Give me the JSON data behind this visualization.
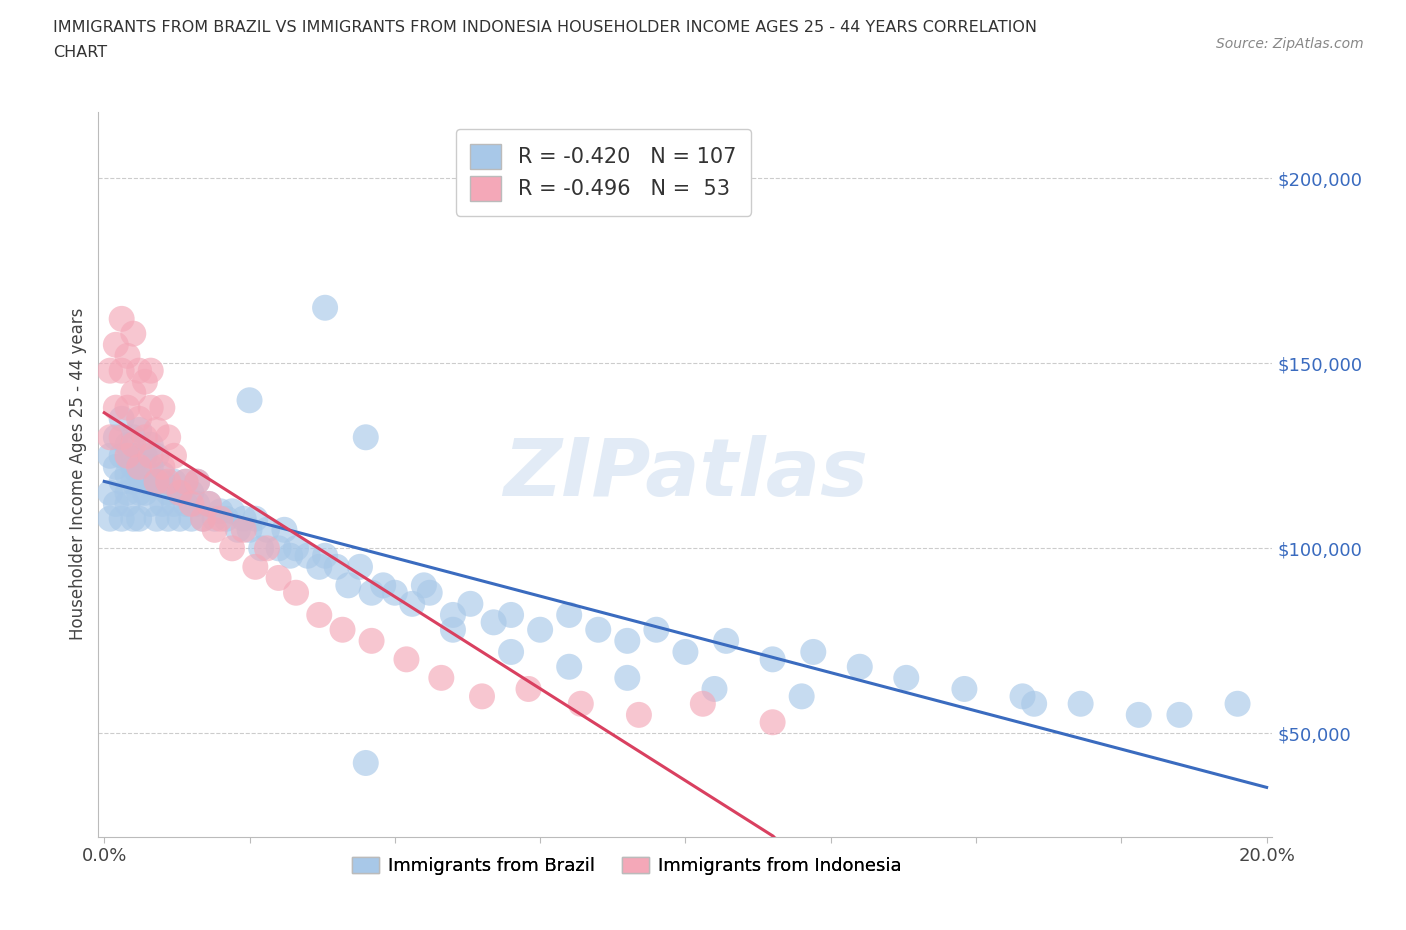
{
  "title_line1": "IMMIGRANTS FROM BRAZIL VS IMMIGRANTS FROM INDONESIA HOUSEHOLDER INCOME AGES 25 - 44 YEARS CORRELATION",
  "title_line2": "CHART",
  "source": "Source: ZipAtlas.com",
  "ylabel": "Householder Income Ages 25 - 44 years",
  "xlim": [
    -0.001,
    0.201
  ],
  "ylim": [
    22000,
    218000
  ],
  "yticks": [
    50000,
    100000,
    150000,
    200000
  ],
  "ytick_labels": [
    "$50,000",
    "$100,000",
    "$150,000",
    "$200,000"
  ],
  "xticks": [
    0.0,
    0.025,
    0.05,
    0.075,
    0.1,
    0.125,
    0.15,
    0.175,
    0.2
  ],
  "xtick_labels": [
    "0.0%",
    "",
    "",
    "",
    "",
    "",
    "",
    "",
    "20.0%"
  ],
  "brazil_color": "#a8c8e8",
  "indonesia_color": "#f4a8b8",
  "brazil_line_color": "#3a6bbf",
  "indonesia_line_color": "#d94060",
  "brazil_R": -0.42,
  "brazil_N": 107,
  "indonesia_R": -0.496,
  "indonesia_N": 53,
  "watermark": "ZIPatlas",
  "brazil_label": "Immigrants from Brazil",
  "indonesia_label": "Immigrants from Indonesia",
  "brazil_x": [
    0.001,
    0.001,
    0.001,
    0.002,
    0.002,
    0.002,
    0.003,
    0.003,
    0.003,
    0.003,
    0.004,
    0.004,
    0.004,
    0.004,
    0.005,
    0.005,
    0.005,
    0.005,
    0.005,
    0.006,
    0.006,
    0.006,
    0.006,
    0.007,
    0.007,
    0.007,
    0.008,
    0.008,
    0.008,
    0.009,
    0.009,
    0.009,
    0.01,
    0.01,
    0.01,
    0.011,
    0.011,
    0.012,
    0.012,
    0.013,
    0.013,
    0.014,
    0.014,
    0.015,
    0.015,
    0.016,
    0.016,
    0.017,
    0.018,
    0.019,
    0.02,
    0.021,
    0.022,
    0.023,
    0.024,
    0.025,
    0.026,
    0.027,
    0.028,
    0.03,
    0.031,
    0.032,
    0.033,
    0.035,
    0.037,
    0.038,
    0.04,
    0.042,
    0.044,
    0.046,
    0.048,
    0.05,
    0.053,
    0.056,
    0.06,
    0.063,
    0.067,
    0.07,
    0.075,
    0.08,
    0.085,
    0.09,
    0.095,
    0.1,
    0.107,
    0.115,
    0.122,
    0.13,
    0.138,
    0.148,
    0.158,
    0.168,
    0.178,
    0.045,
    0.038,
    0.025,
    0.06,
    0.07,
    0.055,
    0.08,
    0.09,
    0.105,
    0.12,
    0.16,
    0.185,
    0.195,
    0.045
  ],
  "brazil_y": [
    125000,
    115000,
    108000,
    122000,
    112000,
    130000,
    118000,
    125000,
    108000,
    135000,
    120000,
    112000,
    128000,
    115000,
    130000,
    118000,
    122000,
    108000,
    125000,
    132000,
    115000,
    120000,
    108000,
    125000,
    115000,
    118000,
    122000,
    112000,
    128000,
    118000,
    108000,
    125000,
    118000,
    112000,
    120000,
    115000,
    108000,
    118000,
    112000,
    115000,
    108000,
    118000,
    112000,
    115000,
    108000,
    118000,
    112000,
    108000,
    112000,
    108000,
    110000,
    108000,
    110000,
    105000,
    108000,
    105000,
    108000,
    100000,
    105000,
    100000,
    105000,
    98000,
    100000,
    98000,
    95000,
    98000,
    95000,
    90000,
    95000,
    88000,
    90000,
    88000,
    85000,
    88000,
    82000,
    85000,
    80000,
    82000,
    78000,
    82000,
    78000,
    75000,
    78000,
    72000,
    75000,
    70000,
    72000,
    68000,
    65000,
    62000,
    60000,
    58000,
    55000,
    130000,
    165000,
    140000,
    78000,
    72000,
    90000,
    68000,
    65000,
    62000,
    60000,
    58000,
    55000,
    58000,
    42000
  ],
  "indonesia_x": [
    0.001,
    0.001,
    0.002,
    0.002,
    0.003,
    0.003,
    0.003,
    0.004,
    0.004,
    0.004,
    0.005,
    0.005,
    0.005,
    0.006,
    0.006,
    0.006,
    0.007,
    0.007,
    0.008,
    0.008,
    0.008,
    0.009,
    0.009,
    0.01,
    0.01,
    0.011,
    0.011,
    0.012,
    0.013,
    0.014,
    0.015,
    0.016,
    0.017,
    0.018,
    0.019,
    0.02,
    0.022,
    0.024,
    0.026,
    0.028,
    0.03,
    0.033,
    0.037,
    0.041,
    0.046,
    0.052,
    0.058,
    0.065,
    0.073,
    0.082,
    0.092,
    0.103,
    0.115
  ],
  "indonesia_y": [
    148000,
    130000,
    155000,
    138000,
    162000,
    148000,
    130000,
    152000,
    138000,
    125000,
    158000,
    142000,
    128000,
    148000,
    135000,
    122000,
    145000,
    130000,
    138000,
    125000,
    148000,
    132000,
    118000,
    138000,
    122000,
    130000,
    118000,
    125000,
    115000,
    118000,
    112000,
    118000,
    108000,
    112000,
    105000,
    108000,
    100000,
    105000,
    95000,
    100000,
    92000,
    88000,
    82000,
    78000,
    75000,
    70000,
    65000,
    60000,
    62000,
    58000,
    55000,
    58000,
    53000
  ]
}
